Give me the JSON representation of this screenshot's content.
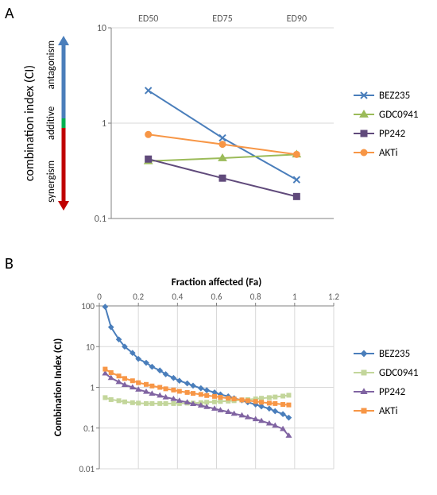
{
  "panels": {
    "A": "A",
    "B": "B"
  },
  "chartA": {
    "type": "line-log",
    "title_y": "combination index (CI)",
    "arrow_top": "antagonism",
    "arrow_mid": "additive",
    "arrow_bot": "synergism",
    "arrow_colors": {
      "top": "#4a7ebb",
      "mid": "#00b050",
      "bot": "#c00000"
    },
    "plot_bg": "#ffffff",
    "axis_color": "#808080",
    "grid_color": "#d9d9d9",
    "x_categories": [
      "ED50",
      "ED75",
      "ED90"
    ],
    "y_ticks": [
      0.1,
      1,
      10
    ],
    "y_tick_labels": [
      "0.1",
      "1",
      "10"
    ],
    "ylim": [
      0.1,
      10
    ],
    "tick_fontsize": 12,
    "label_fontsize": 16,
    "legend_fontsize": 13,
    "marker_size": 8,
    "line_width": 2,
    "series": [
      {
        "name": "BEZ235",
        "color": "#4a7ebb",
        "marker": "x",
        "values": [
          2.2,
          0.7,
          0.255
        ]
      },
      {
        "name": "GDC0941",
        "color": "#9bbb59",
        "marker": "triangle",
        "values": [
          0.4,
          0.43,
          0.47
        ]
      },
      {
        "name": "PP242",
        "color": "#604a7b",
        "marker": "square",
        "values": [
          0.42,
          0.265,
          0.17
        ]
      },
      {
        "name": "AKTi",
        "color": "#f79646",
        "marker": "circle",
        "values": [
          0.76,
          0.6,
          0.47
        ]
      }
    ]
  },
  "chartB": {
    "type": "line-log",
    "title_x": "Fraction affected (Fa)",
    "title_y": "Combination Index (CI)",
    "plot_bg": "#ffffff",
    "axis_color": "#808080",
    "grid_color": "#d9d9d9",
    "x_ticks": [
      0,
      0.2,
      0.4,
      0.6,
      0.8,
      1,
      1.2
    ],
    "x_tick_labels": [
      "0",
      "0.2",
      "0.4",
      "0.6",
      "0.8",
      "1",
      "1.2"
    ],
    "xlim": [
      0,
      1.2
    ],
    "y_ticks": [
      0.01,
      0.1,
      1,
      10,
      100
    ],
    "y_tick_labels": [
      "0.01",
      "0.1",
      "1",
      "10",
      "100"
    ],
    "ylim": [
      0.01,
      100
    ],
    "tick_fontsize": 11,
    "label_fontsize": 13,
    "legend_fontsize": 13,
    "marker_size": 5,
    "line_width": 1.5,
    "series": [
      {
        "name": "BEZ235",
        "color": "#4a7ebb",
        "marker": "diamond",
        "values": [
          [
            0.03,
            95
          ],
          [
            0.06,
            30
          ],
          [
            0.1,
            15
          ],
          [
            0.13,
            10
          ],
          [
            0.17,
            7
          ],
          [
            0.2,
            5
          ],
          [
            0.24,
            4
          ],
          [
            0.27,
            3.2
          ],
          [
            0.31,
            2.6
          ],
          [
            0.34,
            2.1
          ],
          [
            0.38,
            1.7
          ],
          [
            0.41,
            1.45
          ],
          [
            0.45,
            1.25
          ],
          [
            0.48,
            1.1
          ],
          [
            0.52,
            0.95
          ],
          [
            0.55,
            0.85
          ],
          [
            0.59,
            0.75
          ],
          [
            0.62,
            0.67
          ],
          [
            0.66,
            0.6
          ],
          [
            0.69,
            0.54
          ],
          [
            0.73,
            0.48
          ],
          [
            0.76,
            0.43
          ],
          [
            0.8,
            0.38
          ],
          [
            0.83,
            0.34
          ],
          [
            0.87,
            0.3
          ],
          [
            0.9,
            0.26
          ],
          [
            0.94,
            0.22
          ],
          [
            0.97,
            0.18
          ]
        ]
      },
      {
        "name": "GDC0941",
        "color": "#c3d69b",
        "marker": "square",
        "values": [
          [
            0.03,
            0.56
          ],
          [
            0.06,
            0.5
          ],
          [
            0.1,
            0.47
          ],
          [
            0.13,
            0.44
          ],
          [
            0.17,
            0.42
          ],
          [
            0.2,
            0.41
          ],
          [
            0.24,
            0.4
          ],
          [
            0.27,
            0.4
          ],
          [
            0.31,
            0.4
          ],
          [
            0.34,
            0.4
          ],
          [
            0.38,
            0.4
          ],
          [
            0.41,
            0.4
          ],
          [
            0.45,
            0.41
          ],
          [
            0.48,
            0.41
          ],
          [
            0.52,
            0.42
          ],
          [
            0.55,
            0.43
          ],
          [
            0.59,
            0.44
          ],
          [
            0.62,
            0.45
          ],
          [
            0.66,
            0.46
          ],
          [
            0.69,
            0.47
          ],
          [
            0.73,
            0.49
          ],
          [
            0.76,
            0.5
          ],
          [
            0.8,
            0.52
          ],
          [
            0.83,
            0.54
          ],
          [
            0.87,
            0.56
          ],
          [
            0.9,
            0.58
          ],
          [
            0.94,
            0.61
          ],
          [
            0.97,
            0.64
          ]
        ]
      },
      {
        "name": "PP242",
        "color": "#8064a2",
        "marker": "triangle",
        "values": [
          [
            0.03,
            2.2
          ],
          [
            0.06,
            1.7
          ],
          [
            0.1,
            1.35
          ],
          [
            0.13,
            1.15
          ],
          [
            0.17,
            1.0
          ],
          [
            0.2,
            0.88
          ],
          [
            0.24,
            0.78
          ],
          [
            0.27,
            0.7
          ],
          [
            0.31,
            0.63
          ],
          [
            0.34,
            0.57
          ],
          [
            0.38,
            0.52
          ],
          [
            0.41,
            0.47
          ],
          [
            0.45,
            0.43
          ],
          [
            0.48,
            0.39
          ],
          [
            0.52,
            0.36
          ],
          [
            0.55,
            0.33
          ],
          [
            0.59,
            0.3
          ],
          [
            0.62,
            0.275
          ],
          [
            0.66,
            0.25
          ],
          [
            0.69,
            0.225
          ],
          [
            0.73,
            0.205
          ],
          [
            0.76,
            0.185
          ],
          [
            0.8,
            0.165
          ],
          [
            0.83,
            0.15
          ],
          [
            0.87,
            0.13
          ],
          [
            0.9,
            0.115
          ],
          [
            0.94,
            0.095
          ],
          [
            0.97,
            0.065
          ]
        ]
      },
      {
        "name": "AKTi",
        "color": "#f79646",
        "marker": "square",
        "values": [
          [
            0.03,
            2.8
          ],
          [
            0.06,
            2.3
          ],
          [
            0.1,
            1.9
          ],
          [
            0.13,
            1.65
          ],
          [
            0.17,
            1.45
          ],
          [
            0.2,
            1.3
          ],
          [
            0.24,
            1.18
          ],
          [
            0.27,
            1.08
          ],
          [
            0.31,
            1.0
          ],
          [
            0.34,
            0.92
          ],
          [
            0.38,
            0.86
          ],
          [
            0.41,
            0.8
          ],
          [
            0.45,
            0.75
          ],
          [
            0.48,
            0.71
          ],
          [
            0.52,
            0.67
          ],
          [
            0.55,
            0.63
          ],
          [
            0.59,
            0.6
          ],
          [
            0.62,
            0.57
          ],
          [
            0.66,
            0.54
          ],
          [
            0.69,
            0.52
          ],
          [
            0.73,
            0.49
          ],
          [
            0.76,
            0.47
          ],
          [
            0.8,
            0.45
          ],
          [
            0.83,
            0.43
          ],
          [
            0.87,
            0.41
          ],
          [
            0.9,
            0.4
          ],
          [
            0.94,
            0.38
          ],
          [
            0.97,
            0.37
          ]
        ]
      }
    ]
  }
}
